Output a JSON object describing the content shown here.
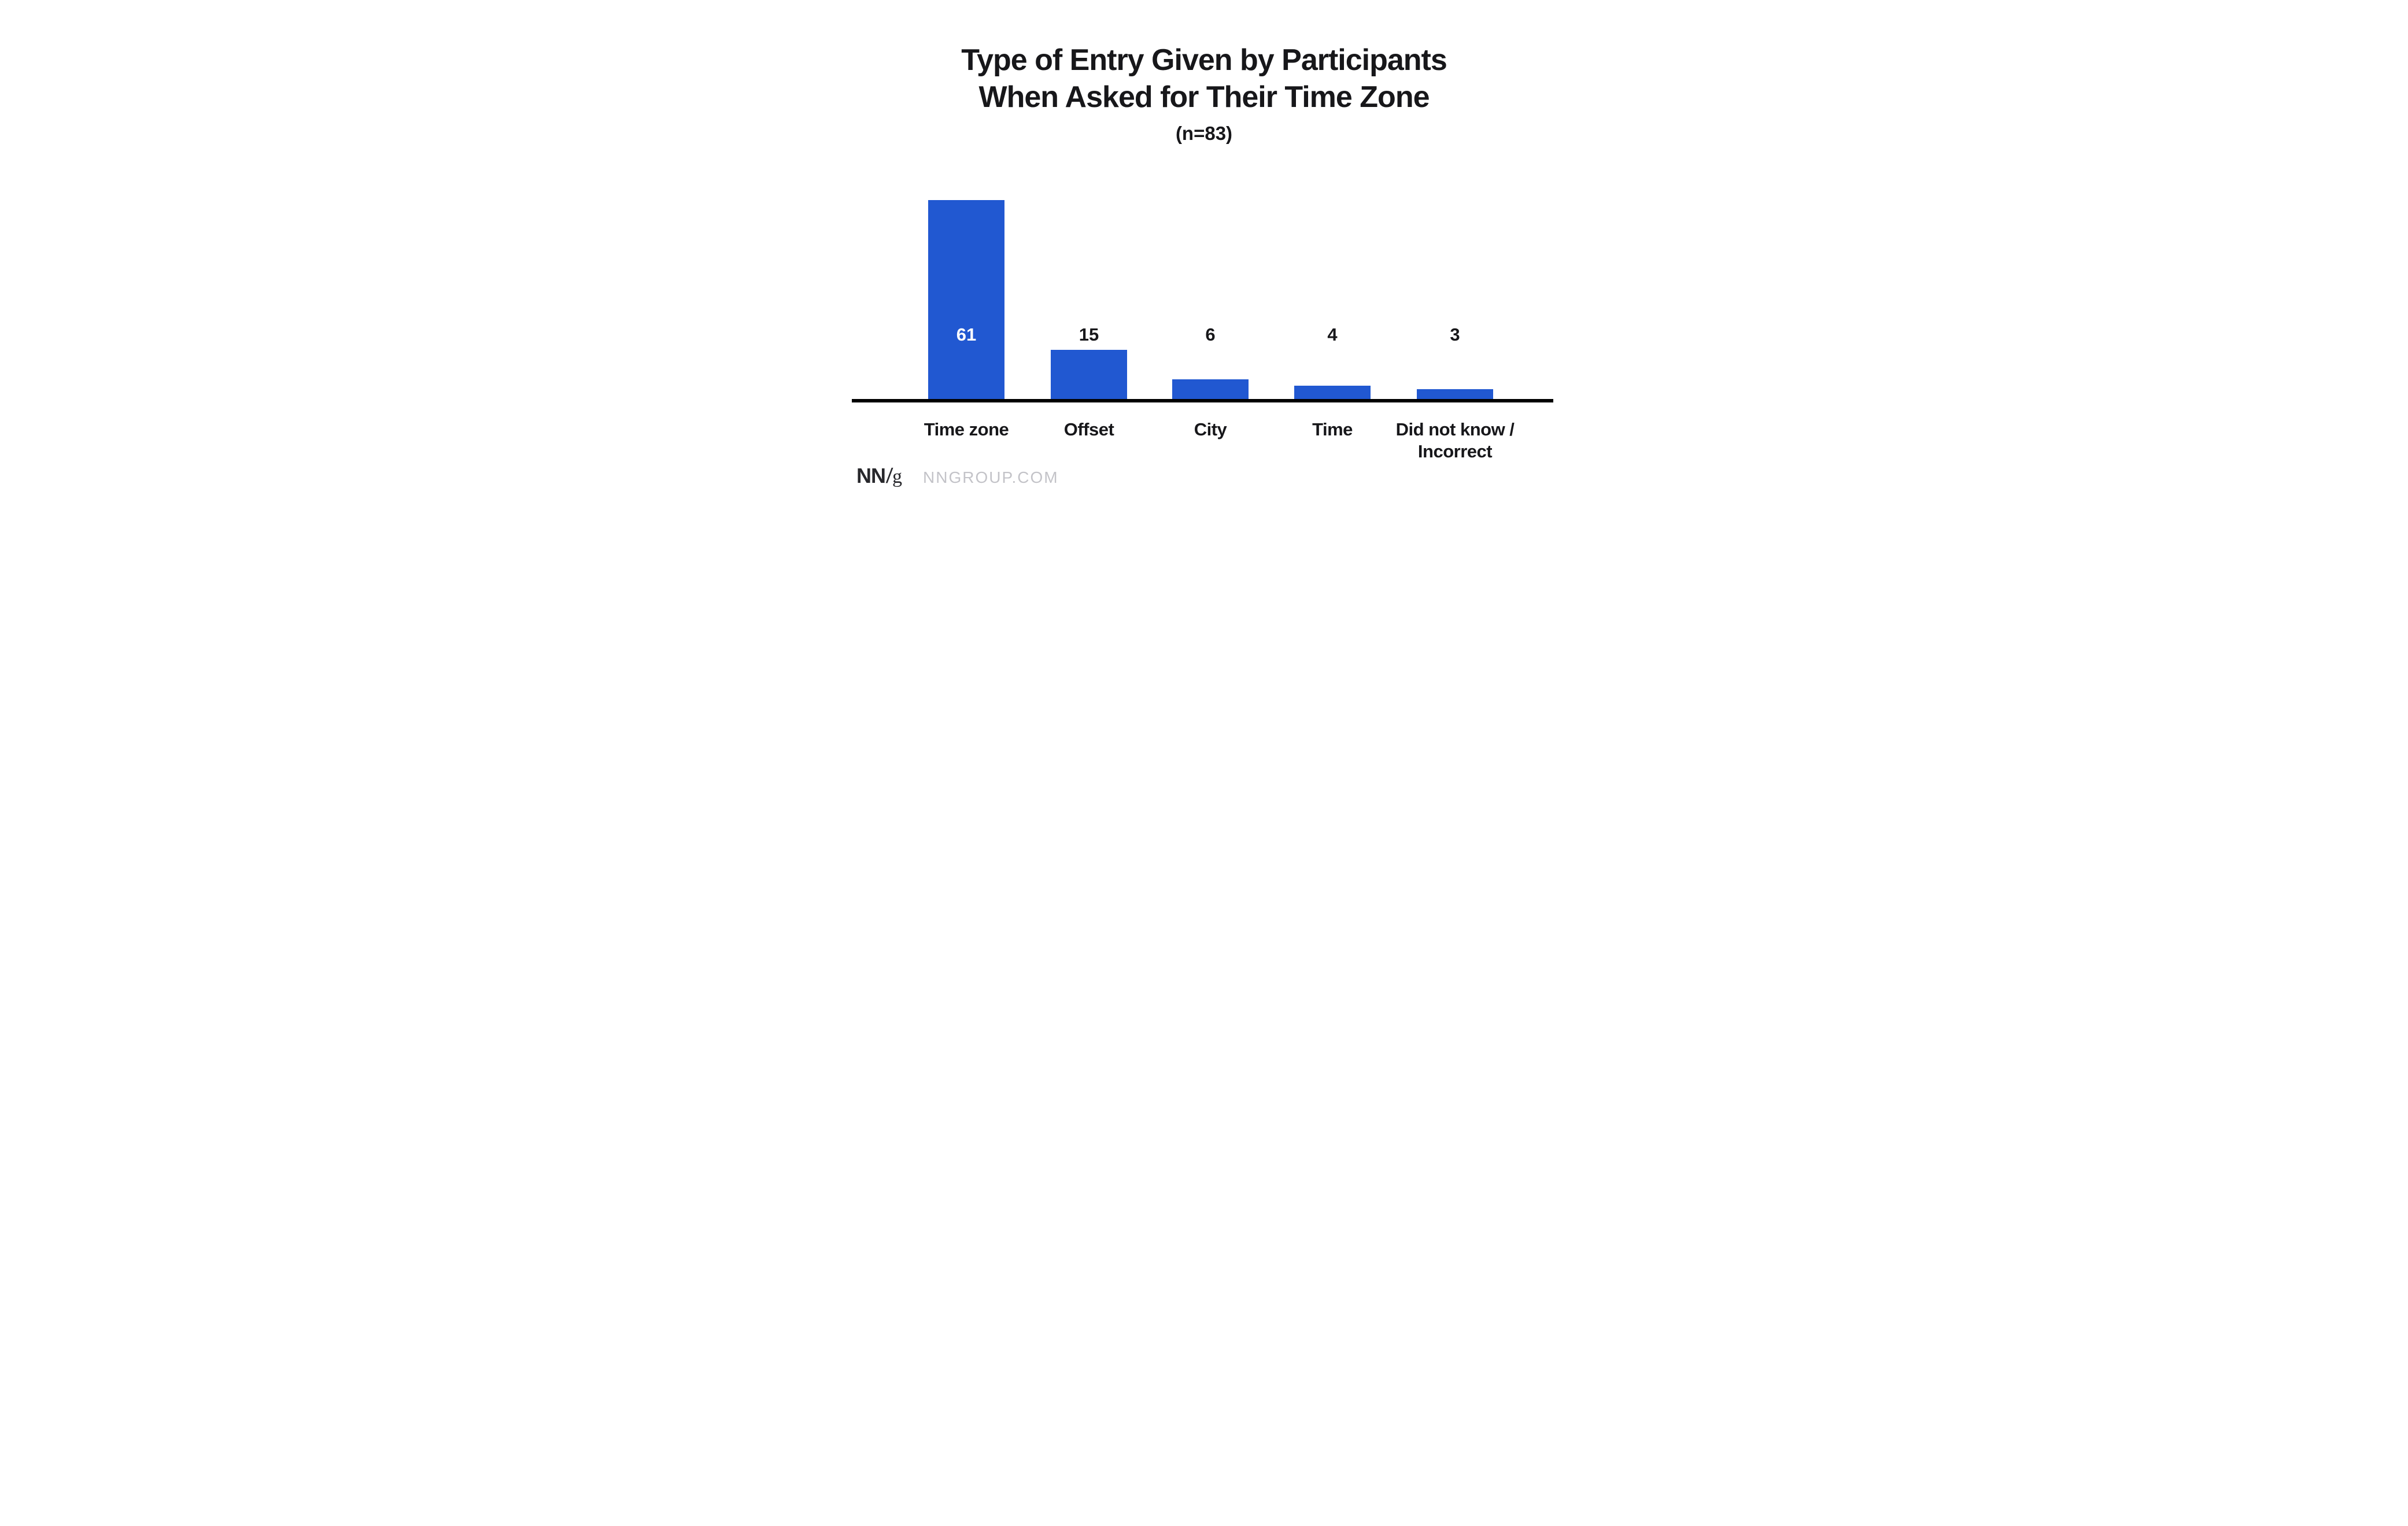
{
  "chart_data": {
    "type": "bar",
    "title_lines": [
      "Type of Entry Given by Participants",
      "When Asked for Their Time Zone"
    ],
    "title": "Type of Entry Given by Participants When Asked for Their Time Zone",
    "subtitle": "(n=83)",
    "n": 83,
    "categories": [
      "Time zone",
      "Offset",
      "City",
      "Time",
      "Did not know /\nIncorrect"
    ],
    "values": [
      61,
      15,
      6,
      4,
      3
    ],
    "xlabel": "",
    "ylabel": "",
    "ylim": [
      0,
      61
    ],
    "grid": false,
    "legend": "none",
    "value_labels_shown": true,
    "colors": {
      "bar": "#2158D1",
      "axis": "#000000",
      "value_inside": "#FFFFFF",
      "value_outside": "#17171A",
      "text": "#17171A",
      "footer_site": "#C3C3C8"
    }
  },
  "footer": {
    "logo_nn": "NN",
    "logo_slash": "/",
    "logo_g": "g",
    "site": "NNGROUP.COM"
  }
}
